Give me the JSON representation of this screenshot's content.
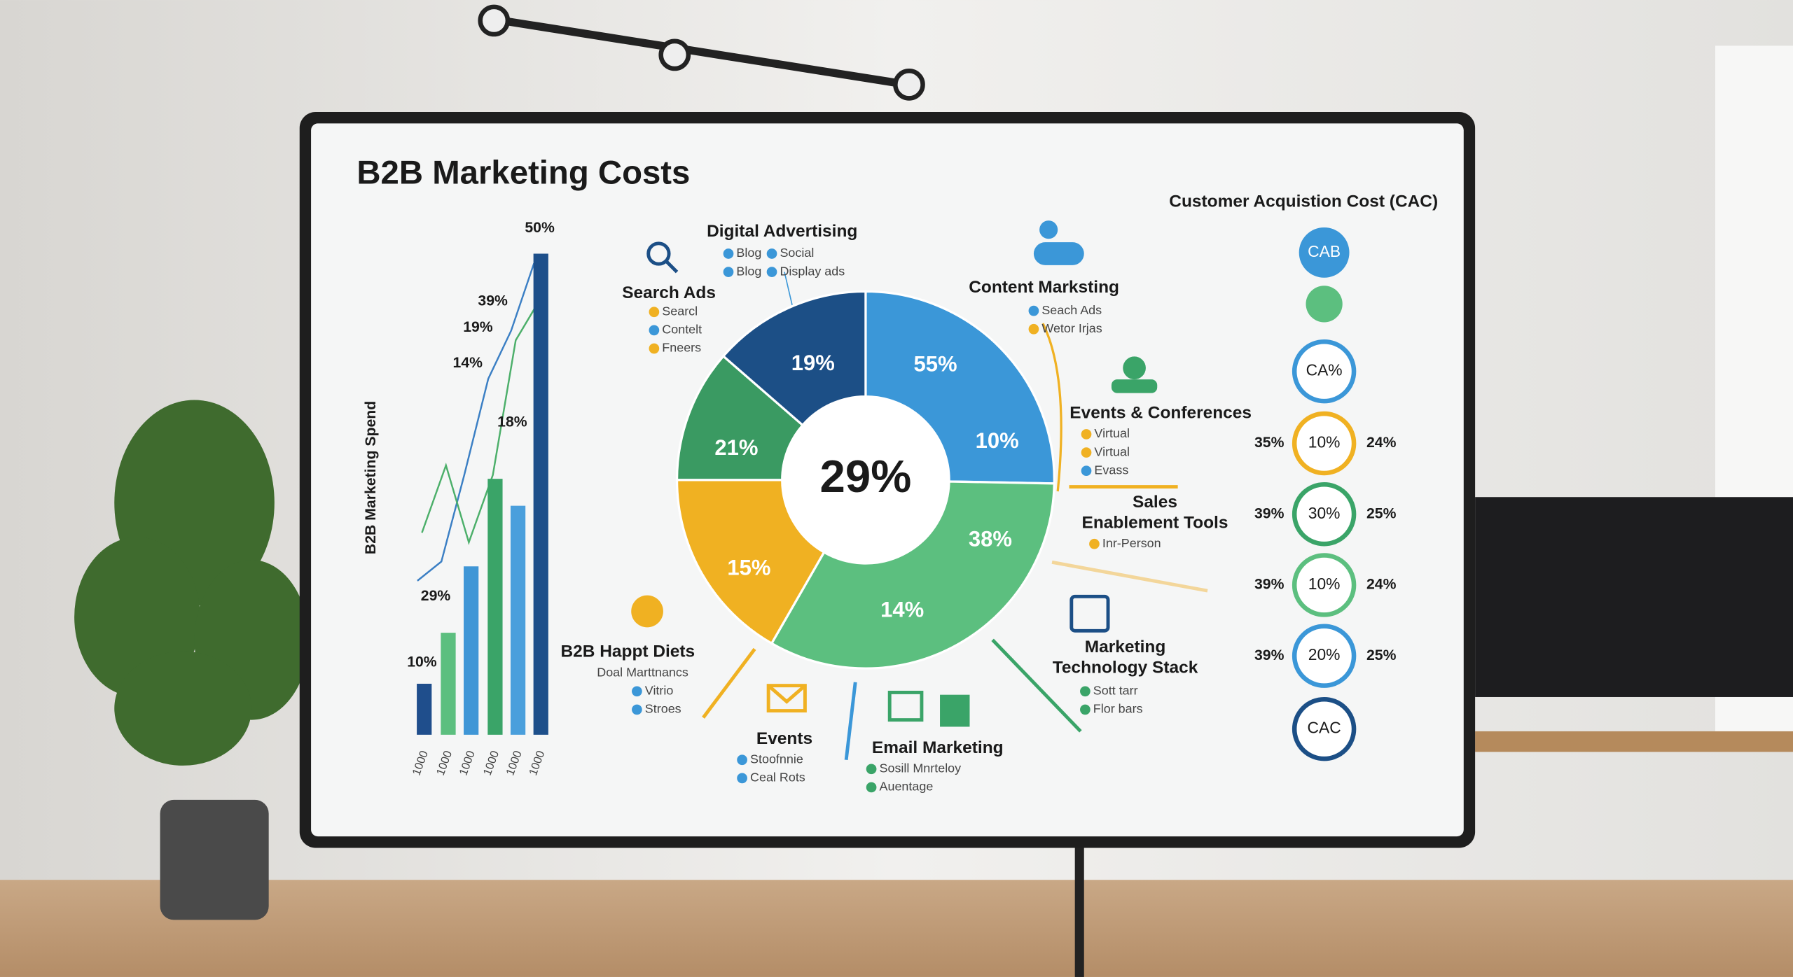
{
  "title": "B2B Marketing Costs",
  "chart_data": [
    {
      "type": "bar",
      "ylabel": "B2B Marketing Spend",
      "categories": [
        "1000",
        "1000",
        "1000",
        "1000",
        "1000",
        "1000"
      ],
      "values": [
        5.3,
        10.6,
        17.5,
        26.6,
        23.8,
        50
      ],
      "colors": [
        "#1f4e8c",
        "#5cbf7f",
        "#3f96d6",
        "#3aa468",
        "#4a9fdc",
        "#1d4f8a"
      ],
      "ylim": [
        0,
        50
      ],
      "series": [
        {
          "color": "#3b7fc4",
          "values": [
            16,
            18,
            27,
            37,
            42,
            49
          ]
        },
        {
          "color": "#4caf6a",
          "values": [
            21,
            28,
            20,
            27,
            41,
            45
          ]
        }
      ],
      "annotations": [
        "50%",
        "39%",
        "19%",
        "14%",
        "18%",
        "29%",
        "10%"
      ]
    },
    {
      "type": "pie",
      "center_label": "29%",
      "values": [
        25.3,
        33,
        16.7,
        11.4,
        13.6
      ],
      "colors": [
        "#3b97d8",
        "#5cbf7f",
        "#f0b122",
        "#3a9a62",
        "#1c4f86"
      ],
      "annotations": [
        "55%",
        "10%",
        "38%",
        "14%",
        "15%",
        "21%",
        "19%"
      ]
    }
  ],
  "callouts": [
    {
      "title": "Digital Advertising",
      "items": [
        {
          "text": "Blog",
          "color": "#3b97d8"
        },
        {
          "text": "Social",
          "color": "#3b97d8"
        },
        {
          "text": "Blog",
          "color": "#3b97d8"
        },
        {
          "text": "Display ads",
          "color": "#3b97d8"
        }
      ]
    },
    {
      "title": "Search Ads",
      "items": [
        {
          "text": "Searcl",
          "color": "#f0b122"
        },
        {
          "text": "Contelt",
          "color": "#3b97d8"
        },
        {
          "text": "Fneers",
          "color": "#f0b122"
        }
      ]
    },
    {
      "title": "Content Marksting",
      "items": [
        {
          "text": "Seach Ads",
          "color": "#3b97d8"
        },
        {
          "text": "Wetor Irjas",
          "color": "#f0b122"
        }
      ]
    },
    {
      "title": "Events & Conferences",
      "items": [
        {
          "text": "Virtual",
          "color": "#f0b122"
        },
        {
          "text": "Virtual",
          "color": "#f0b122"
        },
        {
          "text": "Evass",
          "color": "#3b97d8"
        }
      ]
    },
    {
      "title_lines": [
        "Sales",
        "Enablement Tools"
      ],
      "items": [
        {
          "text": "Inr-Person",
          "color": "#f0b122"
        }
      ]
    },
    {
      "title_lines": [
        "Marketing",
        "Technology Stack"
      ],
      "items": [
        {
          "text": "Sott tarr",
          "color": "#3aa468"
        },
        {
          "text": "Flor bars",
          "color": "#3aa468"
        }
      ]
    },
    {
      "title": "Email Marketing",
      "items": [
        {
          "text": "Sosill Mnrteloy",
          "color": "#3aa468"
        },
        {
          "text": "Auentage",
          "color": "#3aa468"
        }
      ]
    },
    {
      "title": "Events",
      "items": [
        {
          "text": "Stoofnnie",
          "color": "#3b97d8"
        },
        {
          "text": "Ceal Rots",
          "color": "#3b97d8"
        }
      ]
    },
    {
      "title": "B2B Happt Diets",
      "items": [
        {
          "text": "Doal Marttnancs"
        },
        {
          "text": "Vitrio",
          "color": "#3b97d8"
        },
        {
          "text": "Stroes",
          "color": "#3b97d8"
        }
      ]
    }
  ],
  "cac": {
    "title": "Customer Acquistion Cost (CAC)",
    "badge": "CAB",
    "rings": [
      {
        "label": "CA%",
        "color": "#3b97d8"
      },
      {
        "label": "10%",
        "color": "#f0b122",
        "left": "35%",
        "right": "24%"
      },
      {
        "label": "30%",
        "color": "#3aa468",
        "left": "39%",
        "right": "25%"
      },
      {
        "label": "10%",
        "color": "#5cbf7f",
        "left": "39%",
        "right": "24%"
      },
      {
        "label": "20%",
        "color": "#3b97d8",
        "left": "39%",
        "right": "25%"
      },
      {
        "label": "CAC",
        "color": "#1c4f86"
      }
    ]
  }
}
